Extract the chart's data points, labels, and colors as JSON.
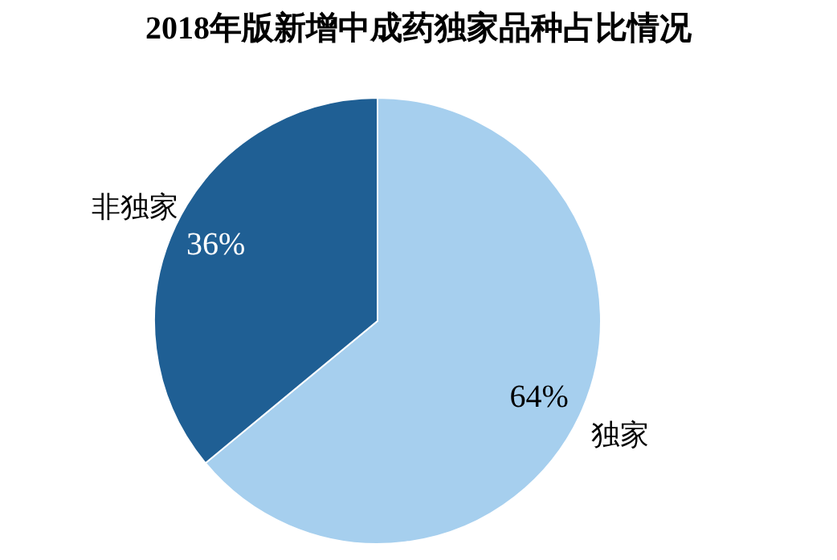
{
  "chart_data": {
    "type": "pie",
    "title": "2018年版新增中成药独家品种占比情况",
    "categories": [
      "独家",
      "非独家"
    ],
    "values": [
      64,
      36
    ],
    "colors": [
      "#a6cfee",
      "#1f5f94"
    ],
    "value_labels": [
      "64%",
      "36%"
    ],
    "legend": false
  }
}
